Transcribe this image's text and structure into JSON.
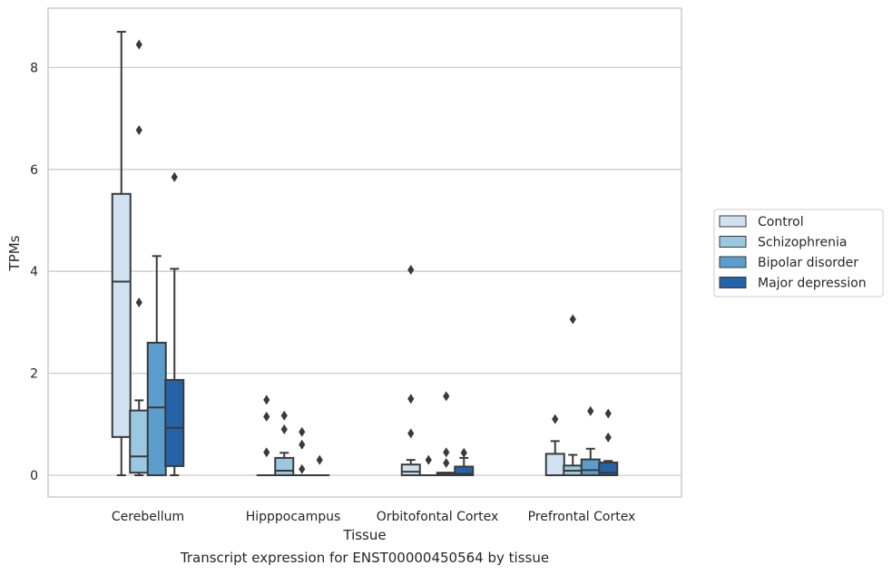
{
  "chart_data": {
    "type": "box",
    "xlabel": "Tissue",
    "ylabel": "TPMs",
    "caption": "Transcript expression for ENST00000450564 by tissue",
    "categories": [
      "Cerebellum",
      "Hipppocampus",
      "Orbitofontal Cortex",
      "Prefrontal Cortex"
    ],
    "ylim": [
      -0.42,
      9.2
    ],
    "yticks": [
      0,
      2,
      4,
      6,
      8
    ],
    "grid": "horizontal",
    "legend_position": "right",
    "series": [
      {
        "name": "Control",
        "color": "#d0e1f2",
        "boxes": [
          {
            "min": 0,
            "q1": 0.75,
            "median": 3.8,
            "q3": 5.52,
            "max": 8.7,
            "outliers": []
          },
          {
            "min": 0,
            "q1": 0,
            "median": 0,
            "q3": 0,
            "max": 0,
            "outliers": [
              0.45,
              1.15,
              1.48
            ]
          },
          {
            "min": 0,
            "q1": 0,
            "median": 0.07,
            "q3": 0.21,
            "max": 0.3,
            "outliers": [
              0.82,
              1.5,
              4.03
            ]
          },
          {
            "min": 0,
            "q1": 0,
            "median": 0,
            "q3": 0.42,
            "max": 0.67,
            "outliers": [
              1.1
            ]
          }
        ]
      },
      {
        "name": "Schizophrenia",
        "color": "#9ac8e0",
        "boxes": [
          {
            "min": 0,
            "q1": 0.05,
            "median": 0.37,
            "q3": 1.27,
            "max": 1.47,
            "outliers": [
              3.39,
              6.77,
              8.45
            ]
          },
          {
            "min": 0,
            "q1": 0,
            "median": 0.09,
            "q3": 0.34,
            "max": 0.44,
            "outliers": [
              0.9,
              1.17
            ]
          },
          {
            "min": 0,
            "q1": 0,
            "median": 0,
            "q3": 0,
            "max": 0,
            "outliers": [
              0.3
            ]
          },
          {
            "min": 0,
            "q1": 0,
            "median": 0.09,
            "q3": 0.19,
            "max": 0.4,
            "outliers": [
              3.06
            ]
          }
        ]
      },
      {
        "name": "Bipolar disorder",
        "color": "#5b9dcc",
        "boxes": [
          {
            "min": 0,
            "q1": 0,
            "median": 1.33,
            "q3": 2.6,
            "max": 4.3,
            "outliers": []
          },
          {
            "min": 0,
            "q1": 0,
            "median": 0,
            "q3": 0,
            "max": 0,
            "outliers": [
              0.12,
              0.6,
              0.85
            ]
          },
          {
            "min": 0,
            "q1": 0,
            "median": 0.02,
            "q3": 0.05,
            "max": 0.05,
            "outliers": [
              0.24,
              0.45,
              1.55
            ]
          },
          {
            "min": 0,
            "q1": 0,
            "median": 0.1,
            "q3": 0.31,
            "max": 0.52,
            "outliers": [
              1.26
            ]
          }
        ]
      },
      {
        "name": "Major depression",
        "color": "#2563a8",
        "boxes": [
          {
            "min": 0,
            "q1": 0.18,
            "median": 0.93,
            "q3": 1.87,
            "max": 4.05,
            "outliers": [
              5.85
            ]
          },
          {
            "min": 0,
            "q1": 0,
            "median": 0,
            "q3": 0,
            "max": 0,
            "outliers": [
              0.3
            ]
          },
          {
            "min": 0,
            "q1": 0,
            "median": 0.03,
            "q3": 0.17,
            "max": 0.34,
            "outliers": [
              0.44
            ]
          },
          {
            "min": 0,
            "q1": 0,
            "median": 0.05,
            "q3": 0.25,
            "max": 0.28,
            "outliers": [
              0.74,
              1.21
            ]
          }
        ]
      }
    ]
  }
}
